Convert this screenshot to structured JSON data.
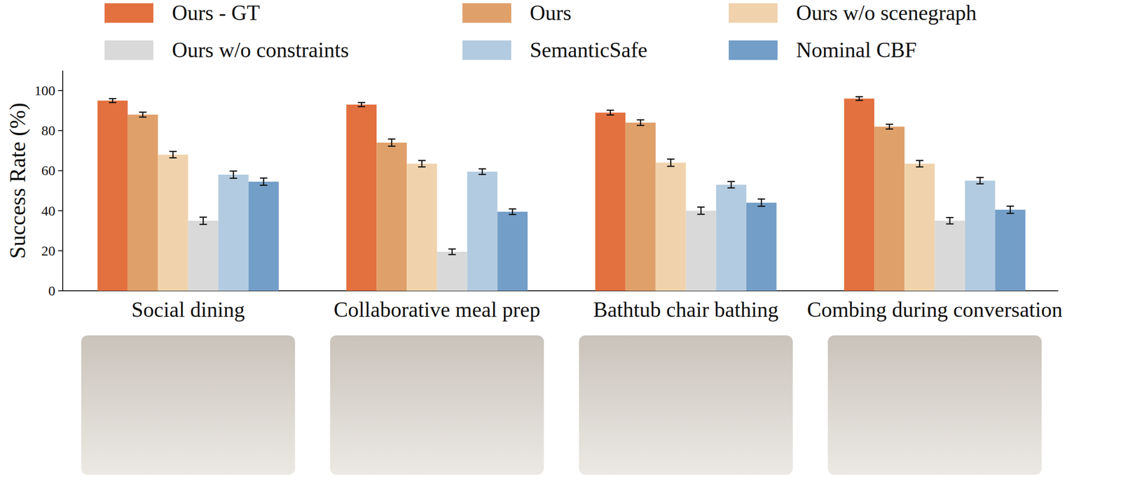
{
  "chart_data": {
    "type": "bar",
    "y_label": "Success Rate (%)",
    "categories": [
      "Social dining",
      "Collaborative meal prep",
      "Bathtub chair bathing",
      "Combing during conversation"
    ],
    "series": [
      {
        "name": "Ours - GT",
        "color": "#e3703f",
        "values": [
          95,
          93,
          89,
          96
        ],
        "errors": [
          1.0,
          1.0,
          1.2,
          0.9
        ]
      },
      {
        "name": "Ours",
        "color": "#e0a06a",
        "values": [
          88,
          74,
          84,
          82
        ],
        "errors": [
          1.2,
          1.8,
          1.4,
          1.2
        ]
      },
      {
        "name": "Ours w/o scenegraph",
        "color": "#f0d3ad",
        "values": [
          68,
          63.5,
          64,
          63.5
        ],
        "errors": [
          1.6,
          1.6,
          1.8,
          1.6
        ]
      },
      {
        "name": "Ours w/o constraints",
        "color": "#d9d9d9",
        "values": [
          35,
          19.5,
          40,
          35
        ],
        "errors": [
          1.8,
          1.4,
          1.8,
          1.6
        ]
      },
      {
        "name": "SemanticSafe",
        "color": "#b3cbe0",
        "values": [
          58,
          59.5,
          53,
          55
        ],
        "errors": [
          1.8,
          1.4,
          1.6,
          1.6
        ]
      },
      {
        "name": "Nominal CBF",
        "color": "#739ec8",
        "values": [
          54.5,
          39.5,
          44,
          40.5
        ],
        "errors": [
          1.8,
          1.4,
          1.8,
          1.8
        ]
      }
    ],
    "ylim": [
      0,
      110
    ],
    "yticks": [
      0,
      20,
      40,
      60,
      80,
      100
    ],
    "legend": "top",
    "grid": false
  }
}
